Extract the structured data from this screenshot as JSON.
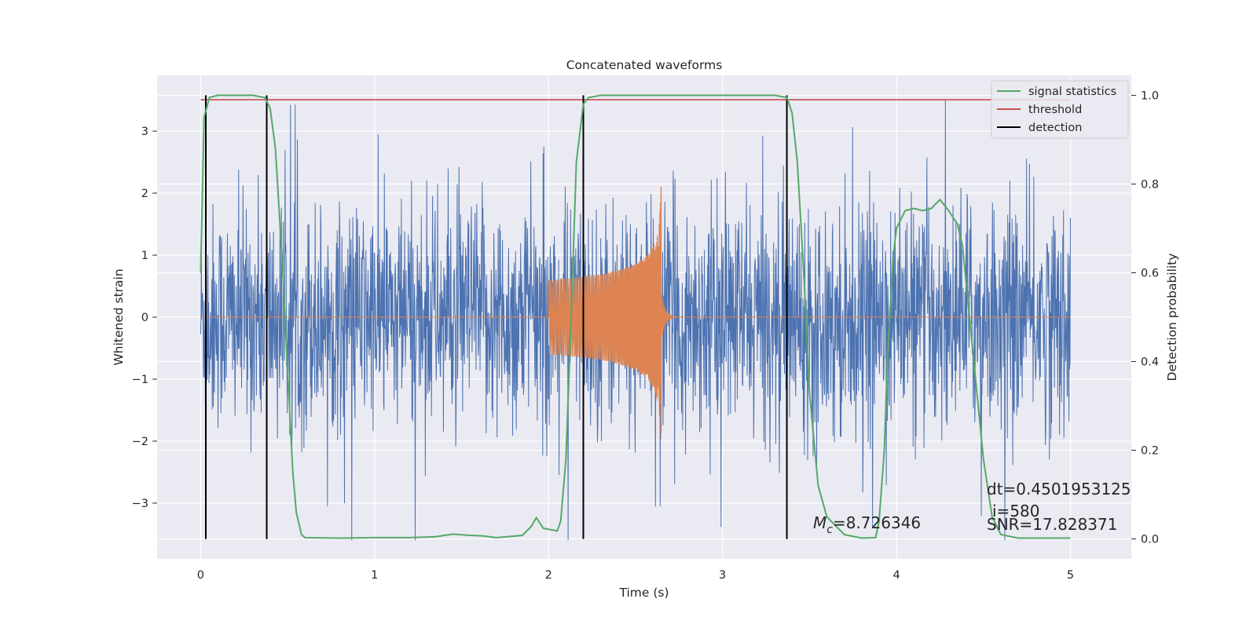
{
  "chart_data": {
    "type": "line",
    "title": "Concatenated waveforms",
    "xlabel": "Time (s)",
    "ylabel": "Whitened strain",
    "y2label": "Detection probability",
    "xlim": [
      -0.25,
      5.35
    ],
    "ylim": [
      -3.9,
      3.9
    ],
    "y2lim": [
      -0.045,
      1.045
    ],
    "xticks": [
      0,
      1,
      2,
      3,
      4,
      5
    ],
    "yticks": [
      -3,
      -2,
      -1,
      0,
      1,
      2,
      3
    ],
    "y2ticks": [
      0.0,
      0.2,
      0.4,
      0.6,
      0.8,
      1.0
    ],
    "grid": true,
    "legend_position": "top-right",
    "colors": {
      "background": "#eaeaf2",
      "strain": "#4c72b0",
      "injection": "#dd8452",
      "signal_statistics": "#55a868",
      "threshold": "#c44e52",
      "detection": "#000000"
    },
    "strain": {
      "x_range": [
        0,
        5
      ],
      "y_extent": [
        -3.6,
        3.5
      ],
      "noise_sigma": 0.9
    },
    "injection": {
      "x_range": [
        2.0,
        2.9
      ],
      "merger_time": 2.65,
      "start_amplitude": 0.6,
      "peak_amplitude": 2.8,
      "min_amplitude": -2.9
    },
    "series": [
      {
        "name": "signal statistics",
        "x": [
          0.0,
          0.02,
          0.05,
          0.1,
          0.2,
          0.3,
          0.37,
          0.4,
          0.43,
          0.47,
          0.5,
          0.53,
          0.55,
          0.58,
          0.6,
          0.8,
          1.0,
          1.2,
          1.35,
          1.45,
          1.55,
          1.62,
          1.7,
          1.85,
          1.9,
          1.93,
          1.97,
          2.05,
          2.07,
          2.1,
          2.13,
          2.16,
          2.2,
          2.23,
          2.3,
          2.6,
          3.0,
          3.3,
          3.37,
          3.4,
          3.43,
          3.47,
          3.5,
          3.55,
          3.6,
          3.7,
          3.8,
          3.88,
          3.9,
          3.93,
          3.95,
          3.98,
          4.0,
          4.05,
          4.1,
          4.15,
          4.2,
          4.25,
          4.3,
          4.35,
          4.38,
          4.4,
          4.45,
          4.5,
          4.55,
          4.6,
          4.7,
          5.0
        ],
        "y": [
          0.6,
          0.95,
          0.995,
          1.0,
          1.0,
          1.0,
          0.995,
          0.97,
          0.88,
          0.62,
          0.38,
          0.15,
          0.06,
          0.01,
          0.003,
          0.002,
          0.003,
          0.003,
          0.005,
          0.011,
          0.008,
          0.007,
          0.003,
          0.008,
          0.028,
          0.048,
          0.024,
          0.018,
          0.04,
          0.18,
          0.5,
          0.85,
          0.98,
          0.995,
          1.0,
          1.0,
          1.0,
          1.0,
          0.995,
          0.96,
          0.85,
          0.58,
          0.33,
          0.12,
          0.05,
          0.01,
          0.002,
          0.003,
          0.04,
          0.2,
          0.42,
          0.63,
          0.7,
          0.74,
          0.745,
          0.74,
          0.745,
          0.765,
          0.74,
          0.71,
          0.66,
          0.58,
          0.38,
          0.18,
          0.05,
          0.01,
          0.002,
          0.002
        ]
      },
      {
        "name": "threshold",
        "x": [
          0.0,
          5.0
        ],
        "y": [
          0.99,
          0.99
        ]
      }
    ],
    "detections": [
      0.03,
      0.38,
      2.2,
      3.37
    ],
    "legend": [
      "signal statistics",
      "threshold",
      "detection"
    ]
  },
  "annotations": {
    "mc_symbol": "M",
    "mc_subscript": "c",
    "mc_value": "=8.726346",
    "dt": "dt=0.4501953125",
    "i": "i=580",
    "snr": "SNR=17.828371"
  }
}
